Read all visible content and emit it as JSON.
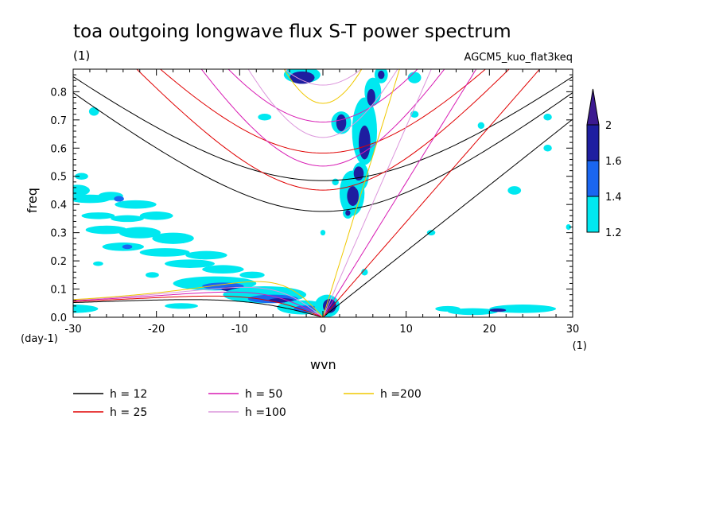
{
  "chart_data": {
    "type": "heatmap",
    "title": "toa outgoing longwave flux S-T power spectrum",
    "subtitle": "(1)",
    "right_label": "AGCM5_kuo_flat3keq",
    "xlabel": "wvn",
    "ylabel": "freq",
    "x_unit": "(1)",
    "y_unit": "(day-1)",
    "xlim": [
      -30,
      30
    ],
    "ylim": [
      0,
      0.88
    ],
    "x_ticks": [
      -30,
      -20,
      -10,
      0,
      10,
      20,
      30
    ],
    "y_ticks": [
      0.0,
      0.1,
      0.2,
      0.3,
      0.4,
      0.5,
      0.6,
      0.7,
      0.8
    ],
    "x_tick_labels": [
      "-30",
      "-20",
      "-10",
      "0",
      "10",
      "20",
      "30"
    ],
    "y_tick_labels": [
      "0.0",
      "0.1",
      "0.2",
      "0.3",
      "0.4",
      "0.5",
      "0.6",
      "0.7",
      "0.8"
    ],
    "colorbar": {
      "levels": [
        1.2,
        1.4,
        1.6,
        2
      ],
      "labels": [
        "1.2",
        "1.4",
        "1.6",
        "2"
      ],
      "colors": [
        "#00e8f0",
        "#1a66f0",
        "#1e1ea0",
        "#3c1a90"
      ]
    },
    "legend": [
      {
        "label": "h = 12",
        "color": "#000000",
        "h": 12
      },
      {
        "label": "h = 25",
        "color": "#e00000",
        "h": 25
      },
      {
        "label": "h = 50",
        "color": "#d81cb4",
        "h": 50
      },
      {
        "label": "h =100",
        "color": "#dc96dc",
        "h": 100
      },
      {
        "label": "h =200",
        "color": "#f0c800",
        "h": 200
      }
    ],
    "regions": [
      {
        "level": 1,
        "x": -29.5,
        "y": 0.45,
        "rx": 1.5,
        "ry": 0.02
      },
      {
        "level": 1,
        "x": -28,
        "y": 0.42,
        "rx": 2.5,
        "ry": 0.015
      },
      {
        "level": 1,
        "x": -25.5,
        "y": 0.43,
        "rx": 1.5,
        "ry": 0.015
      },
      {
        "level": 2,
        "x": -24.5,
        "y": 0.42,
        "rx": 0.6,
        "ry": 0.01
      },
      {
        "level": 1,
        "x": -22.5,
        "y": 0.4,
        "rx": 2.5,
        "ry": 0.015
      },
      {
        "level": 1,
        "x": -20,
        "y": 0.36,
        "rx": 2,
        "ry": 0.015
      },
      {
        "level": 1,
        "x": -27,
        "y": 0.36,
        "rx": 2,
        "ry": 0.012
      },
      {
        "level": 1,
        "x": -29,
        "y": 0.5,
        "rx": 0.8,
        "ry": 0.012
      },
      {
        "level": 1,
        "x": -27.5,
        "y": 0.73,
        "rx": 0.6,
        "ry": 0.015
      },
      {
        "level": 1,
        "x": -26,
        "y": 0.31,
        "rx": 2.5,
        "ry": 0.015
      },
      {
        "level": 1,
        "x": -22,
        "y": 0.3,
        "rx": 2.5,
        "ry": 0.02
      },
      {
        "level": 1,
        "x": -18,
        "y": 0.28,
        "rx": 2.5,
        "ry": 0.02
      },
      {
        "level": 1,
        "x": -24,
        "y": 0.25,
        "rx": 2.5,
        "ry": 0.015
      },
      {
        "level": 2,
        "x": -23.5,
        "y": 0.25,
        "rx": 0.6,
        "ry": 0.008
      },
      {
        "level": 1,
        "x": -19,
        "y": 0.23,
        "rx": 3,
        "ry": 0.015
      },
      {
        "level": 1,
        "x": -14,
        "y": 0.22,
        "rx": 2.5,
        "ry": 0.015
      },
      {
        "level": 1,
        "x": -16,
        "y": 0.19,
        "rx": 3,
        "ry": 0.015
      },
      {
        "level": 1,
        "x": -12,
        "y": 0.17,
        "rx": 2.5,
        "ry": 0.015
      },
      {
        "level": 1,
        "x": -8.5,
        "y": 0.15,
        "rx": 1.5,
        "ry": 0.012
      },
      {
        "level": 1,
        "x": -13,
        "y": 0.12,
        "rx": 5,
        "ry": 0.025
      },
      {
        "level": 2,
        "x": -12,
        "y": 0.11,
        "rx": 2.5,
        "ry": 0.013
      },
      {
        "level": 3,
        "x": -11,
        "y": 0.1,
        "rx": 1.2,
        "ry": 0.008
      },
      {
        "level": 1,
        "x": -7,
        "y": 0.08,
        "rx": 5,
        "ry": 0.03
      },
      {
        "level": 2,
        "x": -6,
        "y": 0.065,
        "rx": 3,
        "ry": 0.015
      },
      {
        "level": 3,
        "x": -5,
        "y": 0.06,
        "rx": 1.5,
        "ry": 0.008
      },
      {
        "level": 1,
        "x": -2.5,
        "y": 0.035,
        "rx": 3,
        "ry": 0.025
      },
      {
        "level": 2,
        "x": -2,
        "y": 0.03,
        "rx": 1.5,
        "ry": 0.012
      },
      {
        "level": 1,
        "x": 0.5,
        "y": 0.04,
        "rx": 1.5,
        "ry": 0.04
      },
      {
        "level": 3,
        "x": 0.8,
        "y": 0.04,
        "rx": 0.8,
        "ry": 0.025
      },
      {
        "level": 1,
        "x": -30,
        "y": 0.03,
        "rx": 3,
        "ry": 0.015
      },
      {
        "level": 1,
        "x": -17,
        "y": 0.04,
        "rx": 2,
        "ry": 0.01
      },
      {
        "level": 1,
        "x": -27,
        "y": 0.19,
        "rx": 0.6,
        "ry": 0.008
      },
      {
        "level": 1,
        "x": -20.5,
        "y": 0.15,
        "rx": 0.8,
        "ry": 0.01
      },
      {
        "level": 1,
        "x": -2.5,
        "y": 0.86,
        "rx": 2.2,
        "ry": 0.03
      },
      {
        "level": 3,
        "x": -2.5,
        "y": 0.85,
        "rx": 1.5,
        "ry": 0.022
      },
      {
        "level": 1,
        "x": 2.2,
        "y": 0.69,
        "rx": 1.2,
        "ry": 0.04
      },
      {
        "level": 3,
        "x": 2.2,
        "y": 0.69,
        "rx": 0.6,
        "ry": 0.03
      },
      {
        "level": 1,
        "x": 3.5,
        "y": 0.44,
        "rx": 1.5,
        "ry": 0.08
      },
      {
        "level": 3,
        "x": 3.6,
        "y": 0.43,
        "rx": 0.7,
        "ry": 0.035
      },
      {
        "level": 1,
        "x": 5,
        "y": 0.66,
        "rx": 1.5,
        "ry": 0.12
      },
      {
        "level": 3,
        "x": 5,
        "y": 0.62,
        "rx": 0.7,
        "ry": 0.06
      },
      {
        "level": 1,
        "x": 4.5,
        "y": 0.5,
        "rx": 1.0,
        "ry": 0.05
      },
      {
        "level": 3,
        "x": 4.3,
        "y": 0.51,
        "rx": 0.6,
        "ry": 0.025
      },
      {
        "level": 1,
        "x": 6,
        "y": 0.8,
        "rx": 1.0,
        "ry": 0.05
      },
      {
        "level": 3,
        "x": 5.8,
        "y": 0.78,
        "rx": 0.5,
        "ry": 0.03
      },
      {
        "level": 1,
        "x": 7,
        "y": 0.86,
        "rx": 0.8,
        "ry": 0.03
      },
      {
        "level": 3,
        "x": 7,
        "y": 0.86,
        "rx": 0.4,
        "ry": 0.015
      },
      {
        "level": 1,
        "x": 3,
        "y": 0.37,
        "rx": 0.6,
        "ry": 0.02
      },
      {
        "level": 3,
        "x": 3,
        "y": 0.37,
        "rx": 0.3,
        "ry": 0.01
      },
      {
        "level": 1,
        "x": 1.5,
        "y": 0.48,
        "rx": 0.4,
        "ry": 0.012
      },
      {
        "level": 1,
        "x": 0,
        "y": 0.3,
        "rx": 0.3,
        "ry": 0.01
      },
      {
        "level": 1,
        "x": 11,
        "y": 0.85,
        "rx": 0.8,
        "ry": 0.02
      },
      {
        "level": 1,
        "x": 13,
        "y": 0.3,
        "rx": 0.5,
        "ry": 0.01
      },
      {
        "level": 1,
        "x": 18,
        "y": 0.02,
        "rx": 3,
        "ry": 0.012
      },
      {
        "level": 1,
        "x": 24,
        "y": 0.03,
        "rx": 4,
        "ry": 0.015
      },
      {
        "level": 3,
        "x": 21,
        "y": 0.025,
        "rx": 1.0,
        "ry": 0.006
      },
      {
        "level": 1,
        "x": 15,
        "y": 0.03,
        "rx": 1.5,
        "ry": 0.01
      },
      {
        "level": 1,
        "x": 23,
        "y": 0.45,
        "rx": 0.8,
        "ry": 0.015
      },
      {
        "level": 1,
        "x": 27,
        "y": 0.6,
        "rx": 0.5,
        "ry": 0.012
      },
      {
        "level": 1,
        "x": 27,
        "y": 0.71,
        "rx": 0.5,
        "ry": 0.012
      },
      {
        "level": 1,
        "x": 11,
        "y": 0.72,
        "rx": 0.5,
        "ry": 0.012
      },
      {
        "level": 1,
        "x": 5,
        "y": 0.16,
        "rx": 0.4,
        "ry": 0.012
      },
      {
        "level": 1,
        "x": 19,
        "y": 0.68,
        "rx": 0.4,
        "ry": 0.012
      },
      {
        "level": 1,
        "x": -7,
        "y": 0.71,
        "rx": 0.8,
        "ry": 0.012
      },
      {
        "level": 1,
        "x": -23.5,
        "y": 0.35,
        "rx": 2.0,
        "ry": 0.012
      },
      {
        "level": 1,
        "x": 29.5,
        "y": 0.32,
        "rx": 0.3,
        "ry": 0.01
      }
    ]
  }
}
